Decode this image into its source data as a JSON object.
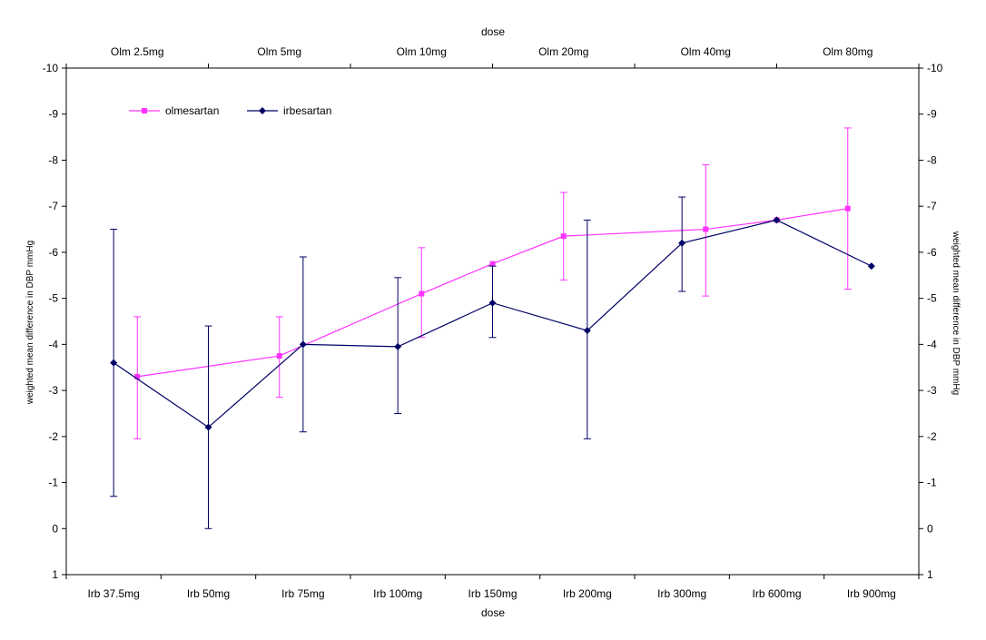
{
  "chart_data": {
    "type": "line",
    "title": "",
    "xlabel_bottom": "dose",
    "xlabel_top": "dose",
    "ylabel_left": "weighted mean difference in DBP mmHg",
    "ylabel_right": "weighted mean difference in DBP mmHg",
    "ylim": [
      1,
      -10
    ],
    "y_reversed": true,
    "yticks": [
      1,
      0,
      -1,
      -2,
      -3,
      -4,
      -5,
      -6,
      -7,
      -8,
      -9,
      -10
    ],
    "grid": false,
    "legend_position": "top-left",
    "bottom_axis": {
      "categories": [
        "Irb 37.5mg",
        "Irb 50mg",
        "Irb 75mg",
        "Irb 100mg",
        "Irb 150mg",
        "Irb 200mg",
        "Irb 300mg",
        "Irb 600mg",
        "Irb 900mg"
      ]
    },
    "top_axis": {
      "categories": [
        "Olm 2.5mg",
        "Olm 5mg",
        "Olm 10mg",
        "Olm 20mg",
        "Olm 40mg",
        "Olm 80mg"
      ]
    },
    "series": [
      {
        "name": "olmesartan",
        "color": "#ff33ff",
        "marker": "square",
        "axis": "top",
        "x": [
          "Olm 2.5mg",
          "Olm 5mg",
          "Olm 10mg",
          "Olm 20mg",
          "Olm 40mg",
          "Olm 80mg"
        ],
        "points": [
          {
            "pos": 0.25,
            "y": -3.3,
            "err_low": -1.95,
            "err_high": -4.6
          },
          {
            "pos": 1.75,
            "y": -3.75,
            "err_low": -2.85,
            "err_high": -4.6
          },
          {
            "pos": 3.25,
            "y": -5.1,
            "err_low": -4.15,
            "err_high": -6.1
          },
          {
            "pos": 4.0,
            "y": -5.75,
            "err_low": null,
            "err_high": null
          },
          {
            "pos": 4.75,
            "y": -6.35,
            "err_low": -5.4,
            "err_high": -7.3
          },
          {
            "pos": 6.25,
            "y": -6.5,
            "err_low": -5.05,
            "err_high": -7.9
          },
          {
            "pos": 7.0,
            "y": -6.7,
            "err_low": null,
            "err_high": null
          },
          {
            "pos": 7.75,
            "y": -6.95,
            "err_low": -5.2,
            "err_high": -8.7
          }
        ]
      },
      {
        "name": "irbesartan",
        "color": "#000066",
        "marker": "diamond",
        "axis": "bottom",
        "x": [
          "Irb 37.5mg",
          "Irb 50mg",
          "Irb 75mg",
          "Irb 100mg",
          "Irb 150mg",
          "Irb 200mg",
          "Irb 300mg",
          "Irb 600mg",
          "Irb 900mg"
        ],
        "points": [
          {
            "pos": 0.0,
            "y": -3.6,
            "err_low": -0.7,
            "err_high": -6.5
          },
          {
            "pos": 1.0,
            "y": -2.2,
            "err_low": 0.0,
            "err_high": -4.4
          },
          {
            "pos": 2.0,
            "y": -4.0,
            "err_low": -2.1,
            "err_high": -5.9
          },
          {
            "pos": 3.0,
            "y": -3.95,
            "err_low": -2.5,
            "err_high": -5.45
          },
          {
            "pos": 4.0,
            "y": -4.9,
            "err_low": -4.15,
            "err_high": -5.7
          },
          {
            "pos": 5.0,
            "y": -4.3,
            "err_low": -1.95,
            "err_high": -6.7
          },
          {
            "pos": 6.0,
            "y": -6.2,
            "err_low": -5.15,
            "err_high": -7.2
          },
          {
            "pos": 7.0,
            "y": -6.7,
            "err_low": null,
            "err_high": null
          },
          {
            "pos": 8.0,
            "y": -5.7,
            "err_low": null,
            "err_high": null
          }
        ]
      }
    ]
  }
}
